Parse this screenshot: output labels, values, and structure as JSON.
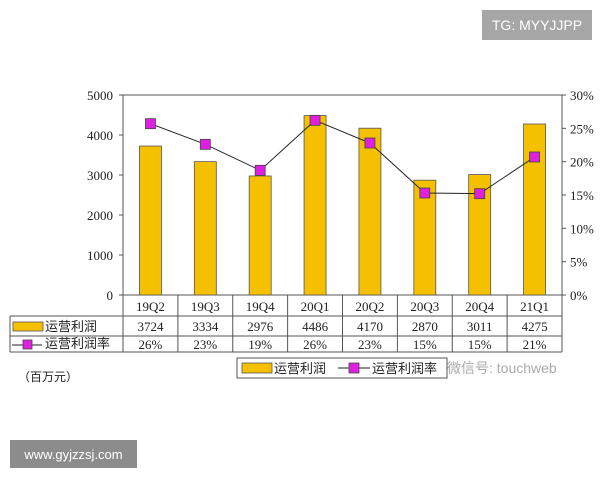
{
  "watermarks": {
    "tg": "TG: MYYJJPP",
    "site": "www.gyjzzsj.com",
    "wechat": "微信号: touchweb"
  },
  "chart_data": {
    "type": "bar",
    "unit_label": "（百万元）",
    "categories": [
      "19Q2",
      "19Q3",
      "19Q4",
      "20Q1",
      "20Q2",
      "20Q3",
      "20Q4",
      "21Q1"
    ],
    "series": [
      {
        "name": "运营利润",
        "type": "bar",
        "axis": "left",
        "color": "#f5c000",
        "values": [
          3724,
          3334,
          2976,
          4486,
          4170,
          2870,
          3011,
          4275
        ]
      },
      {
        "name": "运营利润率",
        "type": "line",
        "axis": "right",
        "color": "#e020e0",
        "values": [
          25.7,
          22.6,
          18.7,
          26.2,
          22.8,
          15.3,
          15.2,
          20.7
        ],
        "labels": [
          "26%",
          "23%",
          "19%",
          "26%",
          "23%",
          "15%",
          "15%",
          "21%"
        ]
      }
    ],
    "ylim_left": [
      0,
      5000
    ],
    "yticks_left": [
      "0",
      "1000",
      "2000",
      "3000",
      "4000",
      "5000"
    ],
    "ylim_right": [
      0,
      30
    ],
    "yticks_right": [
      "0%",
      "5%",
      "10%",
      "15%",
      "20%",
      "25%",
      "30%"
    ],
    "grid": false,
    "legend_placement": "bottom"
  }
}
